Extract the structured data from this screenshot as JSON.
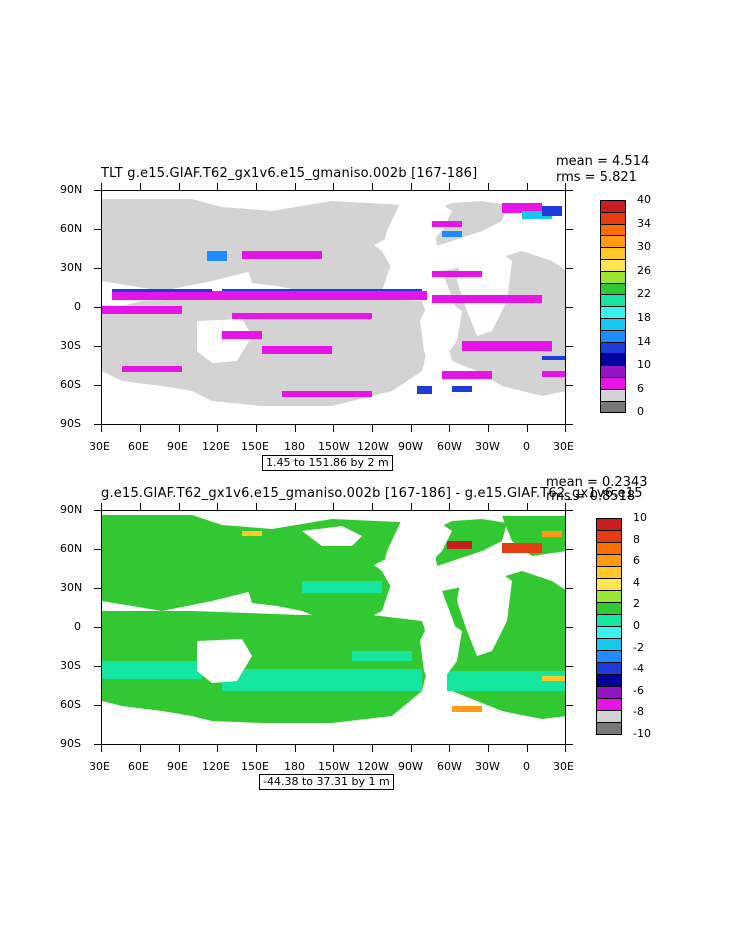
{
  "panels": [
    {
      "title": "TLT g.e15.GIAF.T62_gx1v6.e15_gmaniso.002b [167-186]",
      "stats": {
        "mean": "mean = 4.514",
        "rms": "rms = 5.821"
      },
      "range_label": "1.45 to 151.86 by 2 m",
      "lat_labels": [
        "90N",
        "60N",
        "30N",
        "0",
        "30S",
        "60S",
        "90S"
      ],
      "lon_labels": [
        "30E",
        "60E",
        "90E",
        "120E",
        "150E",
        "180",
        "150W",
        "120W",
        "90W",
        "60W",
        "30W",
        "0",
        "30E"
      ],
      "colorbar_labels": [
        "40",
        "34",
        "30",
        "26",
        "22",
        "18",
        "14",
        "10",
        "6",
        "0"
      ],
      "colorbar_colors": [
        "#c81e1e",
        "#e53c14",
        "#ff6e00",
        "#ff9a14",
        "#ffc828",
        "#ffe650",
        "#9be632",
        "#32c832",
        "#14e6a0",
        "#3cf0f0",
        "#14c8f0",
        "#1e8cff",
        "#1e3cdc",
        "#0000a0",
        "#9614c8",
        "#e614e6",
        "#d2d2d2",
        "#787878"
      ],
      "land_color": "#d3d3d3"
    },
    {
      "title": "g.e15.GIAF.T62_gx1v6.e15_gmaniso.002b [167-186] - g.e15.GIAF.T62_gx1v6.e15",
      "stats": {
        "mean": "mean = 0.2343",
        "rms": "rms = 0.8518"
      },
      "range_label": "-44.38 to 37.31 by 1 m",
      "lat_labels": [
        "90N",
        "60N",
        "30N",
        "0",
        "30S",
        "60S",
        "90S"
      ],
      "lon_labels": [
        "30E",
        "60E",
        "90E",
        "120E",
        "150E",
        "180",
        "150W",
        "120W",
        "90W",
        "60W",
        "30W",
        "0",
        "30E"
      ],
      "colorbar_labels": [
        "10",
        "8",
        "6",
        "4",
        "2",
        "0",
        "-2",
        "-4",
        "-6",
        "-8",
        "-10"
      ],
      "colorbar_colors": [
        "#c81e1e",
        "#e53c14",
        "#ff6e00",
        "#ff9a14",
        "#ffc828",
        "#ffe650",
        "#9be632",
        "#32c832",
        "#14e6a0",
        "#3cf0f0",
        "#14c8f0",
        "#1e8cff",
        "#1e3cdc",
        "#0000a0",
        "#9614c8",
        "#e614e6",
        "#d2d2d2",
        "#787878"
      ],
      "land_color": "#ffffff"
    }
  ]
}
